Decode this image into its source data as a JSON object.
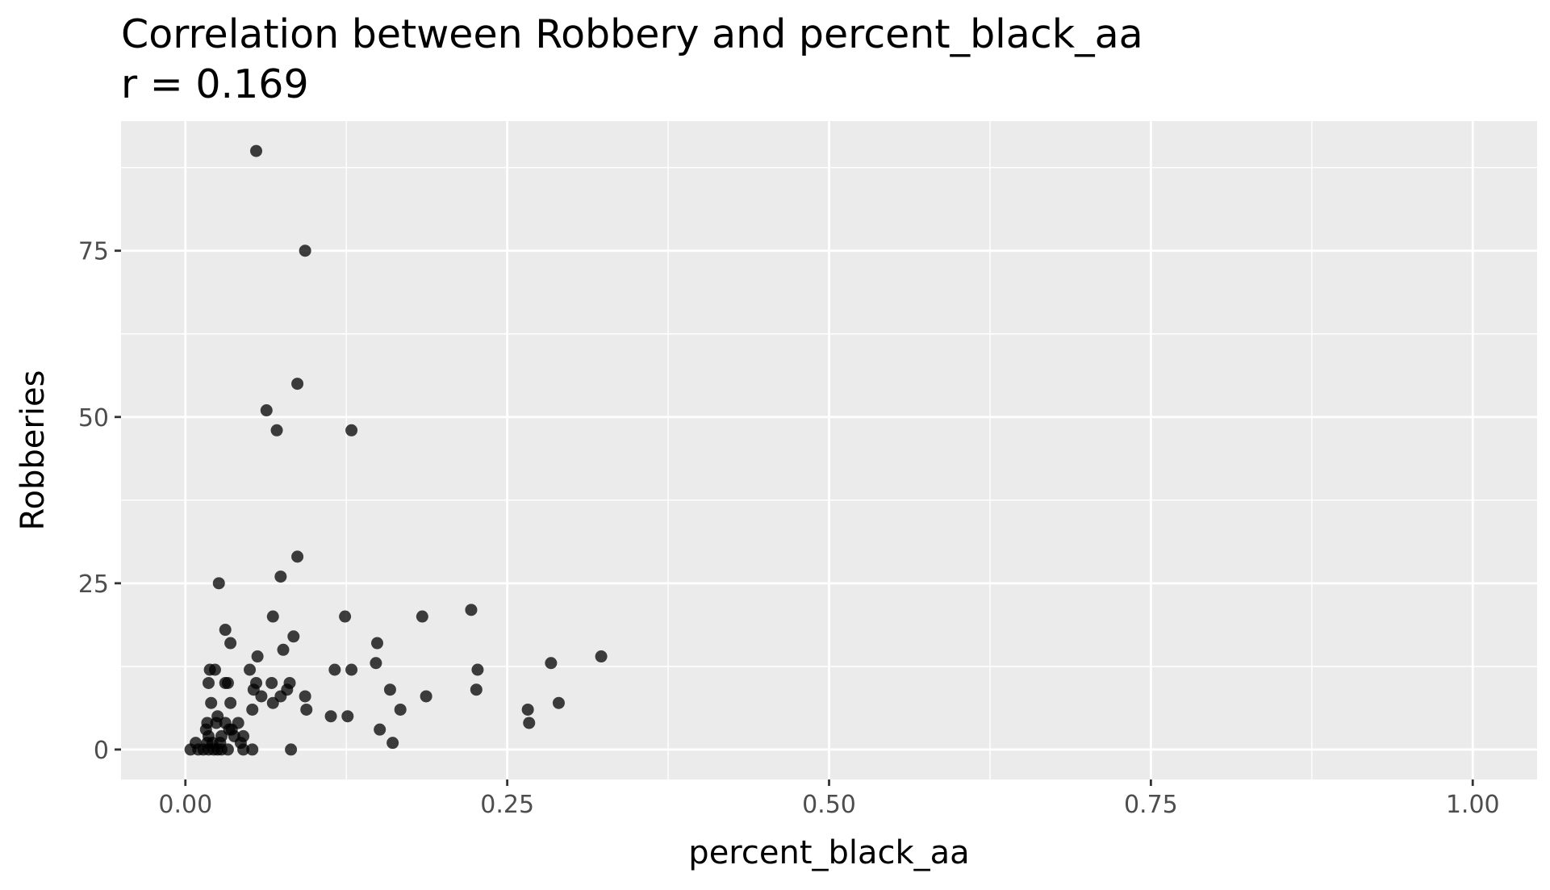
{
  "chart_data": {
    "type": "scatter",
    "title": "Correlation between Robbery and percent_black_aa",
    "subtitle": "r = 0.169",
    "xlabel": "percent_black_aa",
    "ylabel": "Robberies",
    "xlim": [
      -0.05,
      1.05
    ],
    "ylim": [
      -4.5,
      94.5
    ],
    "x_ticks": [
      0,
      0.25,
      0.5,
      0.75,
      1
    ],
    "x_tick_labels": [
      "0.00",
      "0.25",
      "0.50",
      "0.75",
      "1.00"
    ],
    "y_ticks": [
      0,
      25,
      50,
      75
    ],
    "y_tick_labels": [
      "0",
      "25",
      "50",
      "75"
    ],
    "x_minor": [
      0.125,
      0.375,
      0.625,
      0.875
    ],
    "y_minor": [
      12.5,
      37.5,
      62.5,
      87.5
    ],
    "grid": true,
    "colors": {
      "panel": "#ebebeb",
      "grid": "#ffffff",
      "point": "#000000",
      "point_opacity": 0.75,
      "tick_text": "#4d4d4d"
    },
    "points": [
      {
        "x": 0.055,
        "y": 90
      },
      {
        "x": 0.093,
        "y": 75
      },
      {
        "x": 0.087,
        "y": 55
      },
      {
        "x": 0.063,
        "y": 51
      },
      {
        "x": 0.071,
        "y": 48
      },
      {
        "x": 0.129,
        "y": 48
      },
      {
        "x": 0.087,
        "y": 29
      },
      {
        "x": 0.074,
        "y": 26
      },
      {
        "x": 0.026,
        "y": 25
      },
      {
        "x": 0.222,
        "y": 21
      },
      {
        "x": 0.068,
        "y": 20
      },
      {
        "x": 0.124,
        "y": 20
      },
      {
        "x": 0.184,
        "y": 20
      },
      {
        "x": 0.031,
        "y": 18
      },
      {
        "x": 0.084,
        "y": 17
      },
      {
        "x": 0.035,
        "y": 16
      },
      {
        "x": 0.149,
        "y": 16
      },
      {
        "x": 0.076,
        "y": 15
      },
      {
        "x": 0.056,
        "y": 14
      },
      {
        "x": 0.323,
        "y": 14
      },
      {
        "x": 0.148,
        "y": 13
      },
      {
        "x": 0.284,
        "y": 13
      },
      {
        "x": 0.019,
        "y": 12
      },
      {
        "x": 0.023,
        "y": 12
      },
      {
        "x": 0.05,
        "y": 12
      },
      {
        "x": 0.116,
        "y": 12
      },
      {
        "x": 0.129,
        "y": 12
      },
      {
        "x": 0.227,
        "y": 12
      },
      {
        "x": 0.018,
        "y": 10
      },
      {
        "x": 0.031,
        "y": 10
      },
      {
        "x": 0.033,
        "y": 10
      },
      {
        "x": 0.055,
        "y": 10
      },
      {
        "x": 0.067,
        "y": 10
      },
      {
        "x": 0.081,
        "y": 10
      },
      {
        "x": 0.053,
        "y": 9
      },
      {
        "x": 0.079,
        "y": 9
      },
      {
        "x": 0.159,
        "y": 9
      },
      {
        "x": 0.226,
        "y": 9
      },
      {
        "x": 0.059,
        "y": 8
      },
      {
        "x": 0.074,
        "y": 8
      },
      {
        "x": 0.093,
        "y": 8
      },
      {
        "x": 0.187,
        "y": 8
      },
      {
        "x": 0.02,
        "y": 7
      },
      {
        "x": 0.035,
        "y": 7
      },
      {
        "x": 0.068,
        "y": 7
      },
      {
        "x": 0.29,
        "y": 7
      },
      {
        "x": 0.052,
        "y": 6
      },
      {
        "x": 0.094,
        "y": 6
      },
      {
        "x": 0.167,
        "y": 6
      },
      {
        "x": 0.266,
        "y": 6
      },
      {
        "x": 0.025,
        "y": 5
      },
      {
        "x": 0.113,
        "y": 5
      },
      {
        "x": 0.126,
        "y": 5
      },
      {
        "x": 0.017,
        "y": 4
      },
      {
        "x": 0.024,
        "y": 4
      },
      {
        "x": 0.031,
        "y": 4
      },
      {
        "x": 0.041,
        "y": 4
      },
      {
        "x": 0.267,
        "y": 4
      },
      {
        "x": 0.016,
        "y": 3
      },
      {
        "x": 0.034,
        "y": 3
      },
      {
        "x": 0.036,
        "y": 3
      },
      {
        "x": 0.151,
        "y": 3
      },
      {
        "x": 0.018,
        "y": 2
      },
      {
        "x": 0.028,
        "y": 2
      },
      {
        "x": 0.038,
        "y": 2
      },
      {
        "x": 0.045,
        "y": 2
      },
      {
        "x": 0.008,
        "y": 1
      },
      {
        "x": 0.017,
        "y": 1
      },
      {
        "x": 0.021,
        "y": 1
      },
      {
        "x": 0.027,
        "y": 1
      },
      {
        "x": 0.043,
        "y": 1
      },
      {
        "x": 0.161,
        "y": 1
      },
      {
        "x": 0.004,
        "y": 0
      },
      {
        "x": 0.01,
        "y": 0
      },
      {
        "x": 0.014,
        "y": 0
      },
      {
        "x": 0.018,
        "y": 0
      },
      {
        "x": 0.022,
        "y": 0
      },
      {
        "x": 0.025,
        "y": 0
      },
      {
        "x": 0.028,
        "y": 0
      },
      {
        "x": 0.033,
        "y": 0
      },
      {
        "x": 0.045,
        "y": 0
      },
      {
        "x": 0.052,
        "y": 0
      },
      {
        "x": 0.082,
        "y": 0
      }
    ]
  }
}
